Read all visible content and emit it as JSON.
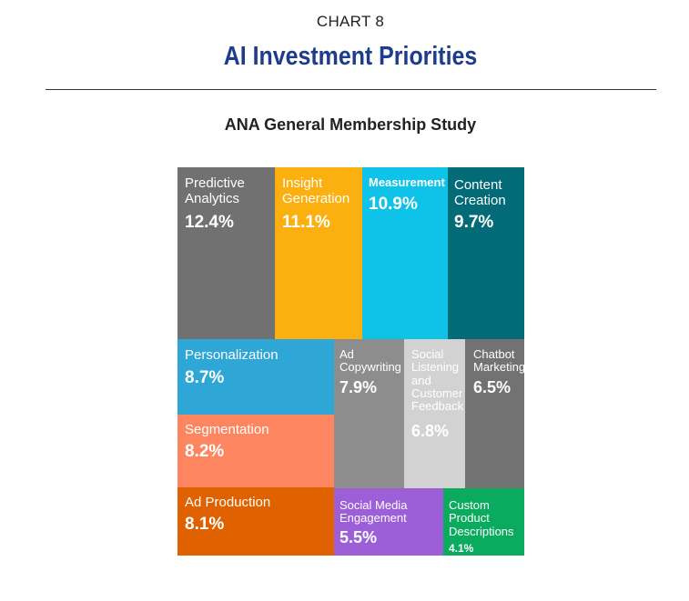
{
  "header": {
    "chart_number": "CHART 8",
    "title": "AI Investment Priorities",
    "subtitle": "ANA General Membership Study"
  },
  "chart_data": {
    "type": "treemap",
    "title": "AI Investment Priorities",
    "subtitle": "ANA General Membership Study",
    "unit": "%",
    "items": [
      {
        "label": "Predictive Analytics",
        "value": 12.4,
        "display": "12.4%",
        "color": "#717171"
      },
      {
        "label": "Insight Generation",
        "value": 11.1,
        "display": "11.1%",
        "color": "#fbb00f"
      },
      {
        "label": "Measurement",
        "value": 10.9,
        "display": "10.9%",
        "color": "#0ec2e8"
      },
      {
        "label": "Content Creation",
        "value": 9.7,
        "display": "9.7%",
        "color": "#036b77"
      },
      {
        "label": "Personalization",
        "value": 8.7,
        "display": "8.7%",
        "color": "#2ea6d6"
      },
      {
        "label": "Segmentation",
        "value": 8.2,
        "display": "8.2%",
        "color": "#fd8660"
      },
      {
        "label": "Ad Production",
        "value": 8.1,
        "display": "8.1%",
        "color": "#e06100"
      },
      {
        "label": "Ad Copywriting",
        "value": 7.9,
        "display": "7.9%",
        "color": "#8d8d8d"
      },
      {
        "label": "Social Listening and Customer Feedback",
        "value": 6.8,
        "display": "6.8%",
        "color": "#d2d2d2"
      },
      {
        "label": "Chatbot Marketing",
        "value": 6.5,
        "display": "6.5%",
        "color": "#727272"
      },
      {
        "label": "Social Media Engagement",
        "value": 5.5,
        "display": "5.5%",
        "color": "#9c5fd8"
      },
      {
        "label": "Custom Product Descriptions",
        "value": 4.1,
        "display": "4.1%",
        "color": "#0aab5e"
      }
    ]
  }
}
